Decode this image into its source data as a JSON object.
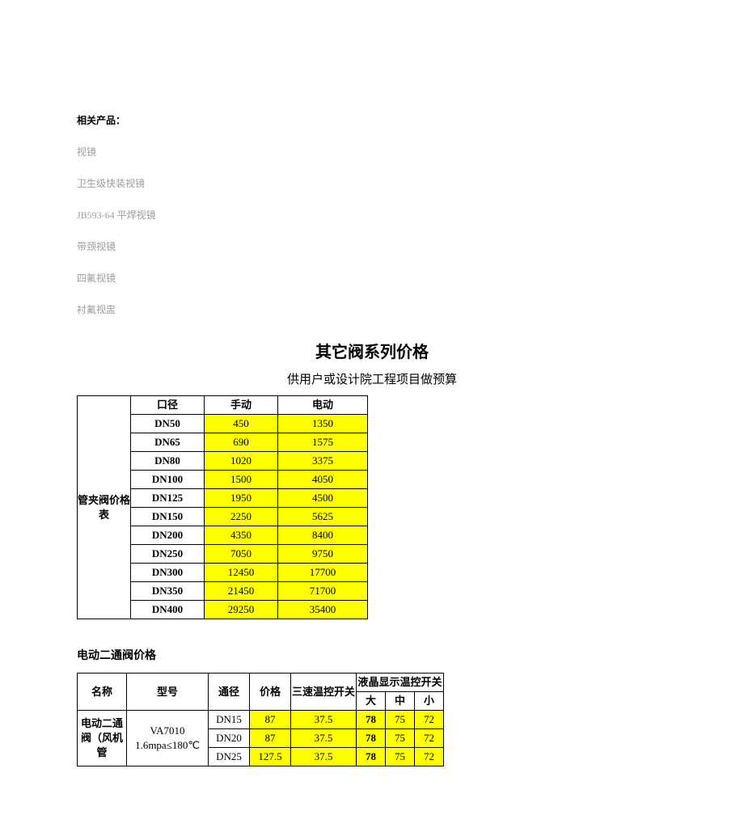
{
  "related": {
    "title": "相关产品：",
    "items": [
      "视镜",
      "卫生级快装视镜",
      "JB593-64 平焊视镜",
      "带颈视镜",
      "四氟视镜",
      "衬氟视盅"
    ]
  },
  "main_title": "其它阀系列价格",
  "sub_title": "供用户或设计院工程项目做预算",
  "table1": {
    "category_label": "管夹阀价格表",
    "headers": [
      "口径",
      "手动",
      "电动"
    ],
    "rows": [
      {
        "dn": "DN50",
        "hand": "450",
        "elec": "1350"
      },
      {
        "dn": "DN65",
        "hand": "690",
        "elec": "1575"
      },
      {
        "dn": "DN80",
        "hand": "1020",
        "elec": "3375"
      },
      {
        "dn": "DN100",
        "hand": "1500",
        "elec": "4050"
      },
      {
        "dn": "DN125",
        "hand": "1950",
        "elec": "4500"
      },
      {
        "dn": "DN150",
        "hand": "2250",
        "elec": "5625"
      },
      {
        "dn": "DN200",
        "hand": "4350",
        "elec": "8400"
      },
      {
        "dn": "DN250",
        "hand": "7050",
        "elec": "9750"
      },
      {
        "dn": "DN300",
        "hand": "12450",
        "elec": "17700"
      },
      {
        "dn": "DN350",
        "hand": "21450",
        "elec": "71700"
      },
      {
        "dn": "DN400",
        "hand": "29250",
        "elec": "35400"
      }
    ],
    "highlight_color": "#ffff00"
  },
  "section2_title": "电动二通阀价格",
  "table2": {
    "headers": {
      "name": "名称",
      "model": "型号",
      "dn": "通径",
      "price": "价格",
      "switch": "三速温控开关",
      "lcd": "液晶显示温控开关",
      "lcd_sub": [
        "大",
        "中",
        "小"
      ]
    },
    "name_label": "电动二通阀（风机管",
    "model_label": "VA7010 1.6mpa≤180℃",
    "rows": [
      {
        "dn": "DN15",
        "price": "87",
        "sw": "37.5",
        "big": "78",
        "mid": "75",
        "small": "72"
      },
      {
        "dn": "DN20",
        "price": "87",
        "sw": "37.5",
        "big": "78",
        "mid": "75",
        "small": "72"
      },
      {
        "dn": "DN25",
        "price": "127.5",
        "sw": "37.5",
        "big": "78",
        "mid": "75",
        "small": "72"
      }
    ]
  }
}
